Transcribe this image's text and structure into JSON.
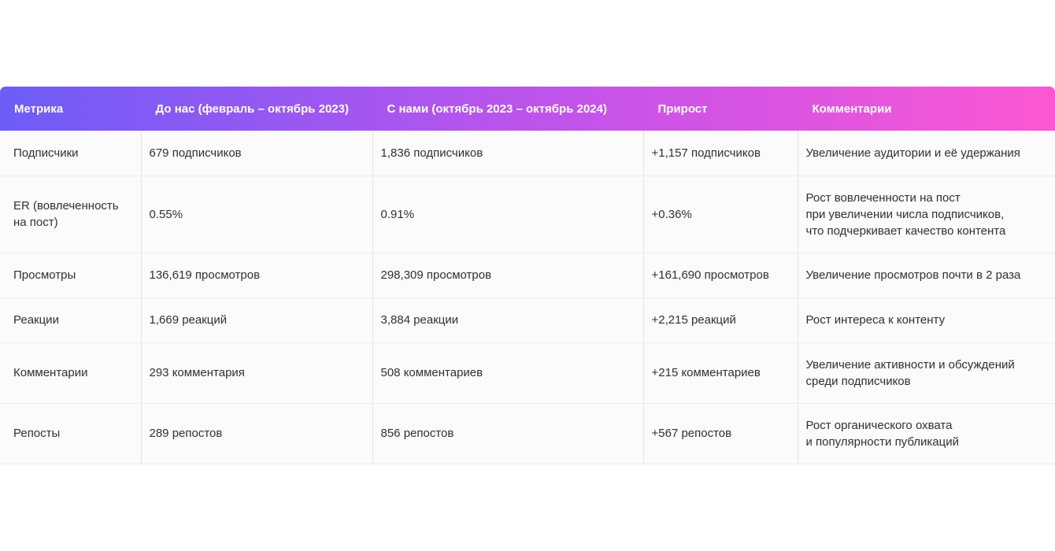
{
  "table": {
    "headers": [
      "Метрика",
      "До нас (февраль – октябрь 2023)",
      "С нами (октябрь 2023 – октябрь 2024)",
      "Прирост",
      "Комментарии"
    ],
    "rows": [
      [
        "Подписчики",
        "679 подписчиков",
        "1,836 подписчиков",
        "+1,157 подписчиков",
        "Увеличение аудитории и её удержания"
      ],
      [
        "ER (вовлеченность\nна пост)",
        "0.55%",
        "0.91%",
        "+0.36%",
        "Рост вовлеченности на пост\nпри увеличении числа подписчиков,\nчто подчеркивает качество контента"
      ],
      [
        "Просмотры",
        "136,619 просмотров",
        "298,309 просмотров",
        "+161,690 просмотров",
        "Увеличение просмотров почти в 2 раза"
      ],
      [
        "Реакции",
        "1,669 реакций",
        "3,884 реакции",
        "+2,215 реакций",
        "Рост интереса к контенту"
      ],
      [
        "Комментарии",
        "293 комментария",
        "508 комментариев",
        "+215 комментариев",
        "Увеличение активности и обсуждений\nсреди подписчиков"
      ],
      [
        "Репосты",
        "289 репостов",
        "856 репостов",
        "+567 репостов",
        "Рост органического охвата\nи популярности публикаций"
      ]
    ]
  },
  "colors": {
    "header_gradient_start": "#6d5cf7",
    "header_gradient_end": "#fc57d2",
    "header_text": "#ffffff",
    "body_text": "#2f2f38"
  }
}
